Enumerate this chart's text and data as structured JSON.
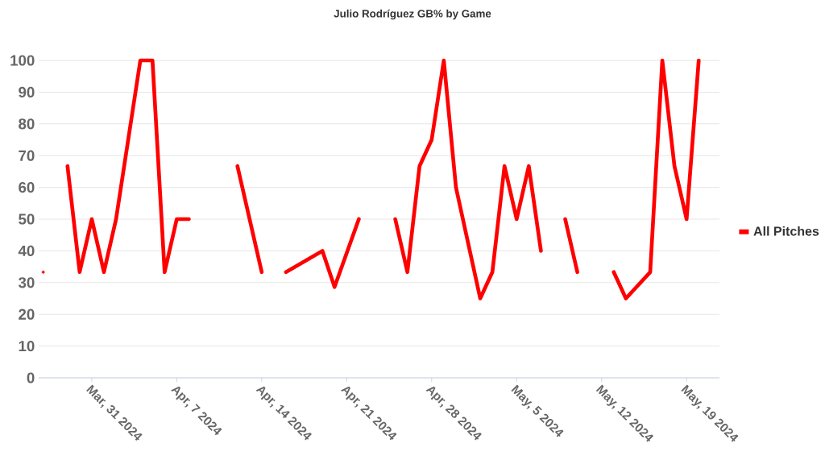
{
  "chart_data": {
    "type": "line",
    "title": "Julio Rodríguez GB% by Game",
    "x": [
      "2024-03-27",
      "2024-03-28",
      "2024-03-29",
      "2024-03-30",
      "2024-03-31",
      "2024-04-01",
      "2024-04-02",
      "2024-04-04",
      "2024-04-05",
      "2024-04-06",
      "2024-04-07",
      "2024-04-08",
      "2024-04-09",
      "2024-04-12",
      "2024-04-14",
      "2024-04-15",
      "2024-04-16",
      "2024-04-19",
      "2024-04-20",
      "2024-04-22",
      "2024-04-23",
      "2024-04-25",
      "2024-04-26",
      "2024-04-27",
      "2024-04-28",
      "2024-04-29",
      "2024-04-30",
      "2024-05-02",
      "2024-05-03",
      "2024-05-04",
      "2024-05-05",
      "2024-05-06",
      "2024-05-07",
      "2024-05-08",
      "2024-05-09",
      "2024-05-10",
      "2024-05-11",
      "2024-05-13",
      "2024-05-14",
      "2024-05-16",
      "2024-05-17",
      "2024-05-18",
      "2024-05-19",
      "2024-05-20"
    ],
    "series": [
      {
        "name": "All Pitches",
        "color": "#ff0000",
        "values": [
          33.3,
          null,
          66.7,
          33.3,
          50,
          33.3,
          50,
          100,
          100,
          33.3,
          50,
          50,
          null,
          66.7,
          33.3,
          null,
          33.3,
          40,
          28.6,
          50,
          null,
          50,
          33.3,
          66.7,
          75,
          100,
          60,
          25,
          33.3,
          66.7,
          50,
          66.7,
          40,
          null,
          50,
          33.3,
          null,
          33.3,
          25,
          33.3,
          100,
          66.7,
          50,
          100
        ]
      }
    ],
    "xlim": [
      "2024-03-26T15:00",
      "2024-05-21T17:00"
    ],
    "xticks": [
      {
        "value": "2024-03-31",
        "label": "Mar, 31 2024"
      },
      {
        "value": "2024-04-07",
        "label": "Apr, 7 2024"
      },
      {
        "value": "2024-04-14",
        "label": "Apr, 14 2024"
      },
      {
        "value": "2024-04-21",
        "label": "Apr, 21 2024"
      },
      {
        "value": "2024-04-28",
        "label": "Apr, 28 2024"
      },
      {
        "value": "2024-05-05",
        "label": "May, 5 2024"
      },
      {
        "value": "2024-05-12",
        "label": "May, 12 2024"
      },
      {
        "value": "2024-05-19",
        "label": "May, 19 2024"
      }
    ],
    "ylim": [
      0,
      100
    ],
    "yticks": [
      0,
      10,
      20,
      30,
      40,
      50,
      60,
      70,
      80,
      90,
      100
    ],
    "grid": "y",
    "legend": "right",
    "line_style": "solid",
    "marker": "none"
  }
}
